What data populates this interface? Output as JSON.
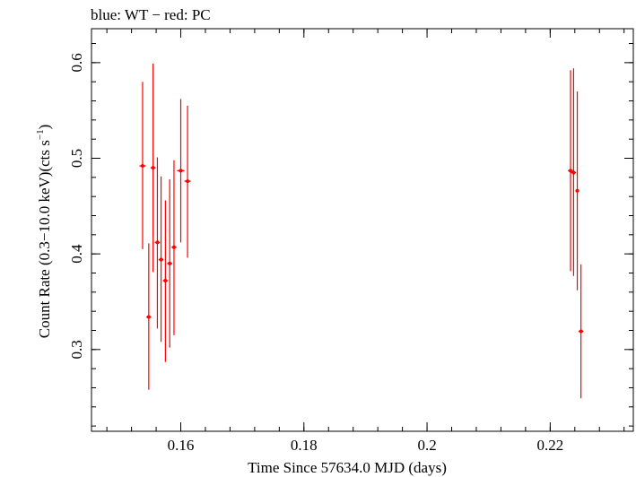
{
  "chart_data": {
    "type": "scatter",
    "title": "blue: WT − red: PC",
    "xlabel": "Time Since 57634.0 MJD (days)",
    "ylabel_parts": [
      "Count Rate (0.3−10.0 keV)(cts s",
      "−1",
      ")"
    ],
    "xlim": [
      0.1455,
      0.2335
    ],
    "ylim": [
      0.2145,
      0.6355
    ],
    "x_ticks": [
      0.16,
      0.18,
      0.2,
      0.22
    ],
    "x_tick_labels": [
      "0.16",
      "0.18",
      "0.2",
      "0.22"
    ],
    "y_ticks": [
      0.3,
      0.4,
      0.5,
      0.6
    ],
    "y_tick_labels": [
      "0.3",
      "0.4",
      "0.5",
      "0.6"
    ],
    "grid": false,
    "series": [
      {
        "color": "#ff0000",
        "marker": "cross-with-errorbars",
        "points": [
          {
            "x": 0.1538,
            "y": 0.492,
            "xerr": 0.0005,
            "ylo": 0.405,
            "yhi": 0.58
          },
          {
            "x": 0.1548,
            "y": 0.334,
            "xerr": 0.0004,
            "ylo": 0.258,
            "yhi": 0.411
          },
          {
            "x": 0.1555,
            "y": 0.49,
            "xerr": 0.0004,
            "ylo": 0.381,
            "yhi": 0.599
          },
          {
            "x": 0.1562,
            "y": 0.412,
            "xerr": 0.0004,
            "ylo": 0.322,
            "yhi": 0.501
          },
          {
            "x": 0.1568,
            "y": 0.394,
            "xerr": 0.0004,
            "ylo": 0.308,
            "yhi": 0.481
          },
          {
            "x": 0.1575,
            "y": 0.372,
            "xerr": 0.0004,
            "ylo": 0.287,
            "yhi": 0.456
          },
          {
            "x": 0.1582,
            "y": 0.39,
            "xerr": 0.0004,
            "ylo": 0.302,
            "yhi": 0.478
          },
          {
            "x": 0.1589,
            "y": 0.407,
            "xerr": 0.0004,
            "ylo": 0.315,
            "yhi": 0.498
          },
          {
            "x": 0.16,
            "y": 0.487,
            "xerr": 0.0006,
            "ylo": 0.412,
            "yhi": 0.562
          },
          {
            "x": 0.1611,
            "y": 0.476,
            "xerr": 0.0005,
            "ylo": 0.396,
            "yhi": 0.555
          },
          {
            "x": 0.2233,
            "y": 0.487,
            "xerr": 0.0004,
            "ylo": 0.382,
            "yhi": 0.592
          },
          {
            "x": 0.2238,
            "y": 0.485,
            "xerr": 0.0004,
            "ylo": 0.377,
            "yhi": 0.594
          },
          {
            "x": 0.2244,
            "y": 0.466,
            "xerr": 0.0003,
            "ylo": 0.362,
            "yhi": 0.57
          },
          {
            "x": 0.225,
            "y": 0.319,
            "xerr": 0.0004,
            "ylo": 0.249,
            "yhi": 0.389
          }
        ]
      }
    ]
  }
}
